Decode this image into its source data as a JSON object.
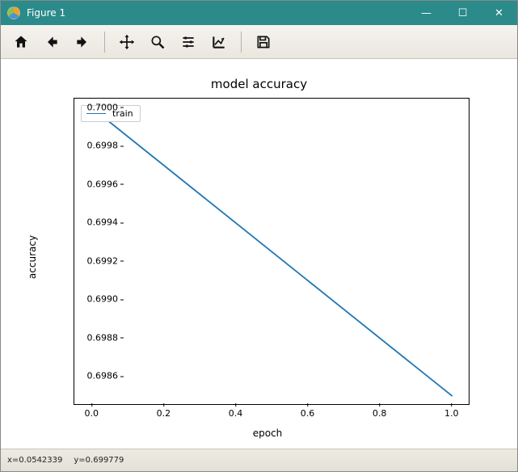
{
  "window": {
    "title": "Figure 1",
    "controls": {
      "minimize": "—",
      "maximize": "☐",
      "close": "✕"
    }
  },
  "toolbar": {
    "items": [
      {
        "name": "home-icon"
      },
      {
        "name": "back-icon"
      },
      {
        "name": "forward-icon"
      },
      {
        "sep": true
      },
      {
        "name": "pan-icon"
      },
      {
        "name": "zoom-icon"
      },
      {
        "name": "configure-icon"
      },
      {
        "name": "axis-edit-icon"
      },
      {
        "sep": true
      },
      {
        "name": "save-icon"
      }
    ]
  },
  "chart": {
    "type": "line",
    "title": "model accuracy",
    "xlabel": "epoch",
    "ylabel": "accuracy",
    "title_fontsize": 15,
    "label_fontsize": 12,
    "tick_fontsize": 11,
    "background_color": "#ffffff",
    "axes_border_color": "#000000",
    "xlim": [
      -0.05,
      1.05
    ],
    "ylim": [
      0.69845,
      0.70005
    ],
    "xticks": [
      0.0,
      0.2,
      0.4,
      0.6,
      0.8,
      1.0
    ],
    "xtick_labels": [
      "0.0",
      "0.2",
      "0.4",
      "0.6",
      "0.8",
      "1.0"
    ],
    "yticks": [
      0.6986,
      0.6988,
      0.699,
      0.6992,
      0.6994,
      0.6996,
      0.6998,
      0.7
    ],
    "ytick_labels": [
      "0.6986",
      "0.6988",
      "0.6990",
      "0.6992",
      "0.6994",
      "0.6996",
      "0.6998",
      "0.7000"
    ],
    "legend": {
      "position": "upper-left",
      "items": [
        {
          "label": "train",
          "color": "#1f77b4"
        }
      ]
    },
    "series": [
      {
        "label": "train",
        "color": "#1f77b4",
        "line_width": 1.8,
        "x": [
          0.0,
          1.0
        ],
        "y": [
          0.7,
          0.6985
        ]
      }
    ]
  },
  "status": {
    "x": "x=0.0542339",
    "y": "y=0.699779"
  }
}
